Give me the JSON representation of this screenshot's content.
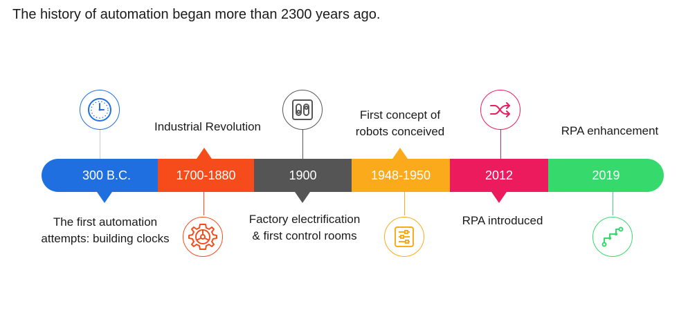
{
  "title": "The history of automation began more than 2300 years ago.",
  "colors": {
    "blue": "#1f6fe0",
    "orange": "#f64b1a",
    "gray": "#555555",
    "amber": "#fbaa1b",
    "pink": "#ec1b5d",
    "green": "#36d96c"
  },
  "timeline": [
    {
      "year": "300 B.C.",
      "description_lines": [
        "The first automation",
        "attempts: building clocks"
      ],
      "icon": "clock-icon",
      "color": "blue"
    },
    {
      "year": "1700-1880",
      "description_lines": [
        "Industrial Revolution"
      ],
      "icon": "gear-wheel-icon",
      "color": "orange"
    },
    {
      "year": "1900",
      "description_lines": [
        "Factory electrification",
        "& first control rooms"
      ],
      "icon": "power-switch-icon",
      "color": "gray"
    },
    {
      "year": "1948-1950",
      "description_lines": [
        "First concept of",
        "robots conceived"
      ],
      "icon": "control-sliders-icon",
      "color": "amber"
    },
    {
      "year": "2012",
      "description_lines": [
        "RPA introduced"
      ],
      "icon": "shuffle-arrows-icon",
      "color": "pink"
    },
    {
      "year": "2019",
      "description_lines": [
        "RPA enhancement"
      ],
      "icon": "growth-path-icon",
      "color": "green"
    }
  ]
}
